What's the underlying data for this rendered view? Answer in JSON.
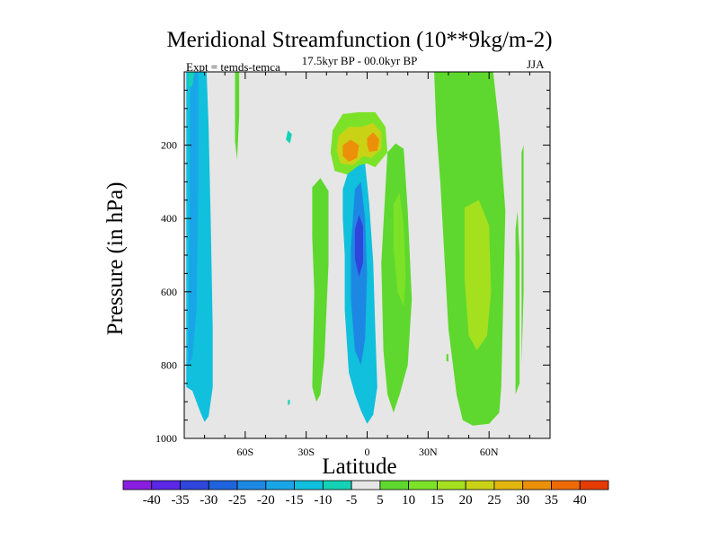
{
  "chart_data": {
    "type": "heatmap",
    "title": "Meridional Streamfunction (10**9kg/m-2)",
    "subtitle": "17.5kyr BP - 00.0kyr BP",
    "left_annotation": "Expt = temds-temca",
    "right_annotation": "JJA",
    "xlabel": "Latitude",
    "ylabel": "Pressure (in hPa)",
    "xlim": [
      -90,
      90
    ],
    "ylim": [
      0,
      1000
    ],
    "y_inverted": true,
    "x_ticks": [
      {
        "value": -60,
        "label": "60S"
      },
      {
        "value": -30,
        "label": "30S"
      },
      {
        "value": 0,
        "label": "0"
      },
      {
        "value": 30,
        "label": "30N"
      },
      {
        "value": 60,
        "label": "60N"
      }
    ],
    "y_ticks": [
      {
        "value": 200,
        "label": "200"
      },
      {
        "value": 400,
        "label": "400"
      },
      {
        "value": 600,
        "label": "600"
      },
      {
        "value": 800,
        "label": "800"
      },
      {
        "value": 1000,
        "label": "1000"
      }
    ],
    "colorbar": {
      "levels": [
        -40,
        -35,
        -30,
        -25,
        -20,
        -15,
        -10,
        -5,
        5,
        10,
        15,
        20,
        25,
        30,
        35,
        40
      ],
      "colors": [
        "#8a1ee0",
        "#5a28e6",
        "#2f46dc",
        "#1f64dc",
        "#1d88e4",
        "#19a6e8",
        "#10c0dc",
        "#14d2b6",
        "#e6e6e6",
        "#5ed82e",
        "#7ce228",
        "#a4e01e",
        "#cad216",
        "#e2b60e",
        "#ec900a",
        "#ee6a06",
        "#e43c02"
      ]
    },
    "regions": [
      {
        "name": "southern-high-lat-cell",
        "value": -12,
        "points": [
          [
            -89,
            0
          ],
          [
            -79,
            0
          ],
          [
            -78,
            150
          ],
          [
            -77,
            400
          ],
          [
            -76,
            700
          ],
          [
            -76,
            860
          ],
          [
            -78,
            940
          ],
          [
            -80,
            955
          ],
          [
            -82,
            930
          ],
          [
            -84,
            900
          ],
          [
            -86,
            870
          ],
          [
            -89,
            860
          ]
        ]
      },
      {
        "name": "southern-core",
        "value": -17,
        "points": [
          [
            -87,
            0
          ],
          [
            -83,
            0
          ],
          [
            -83,
            300
          ],
          [
            -84,
            650
          ],
          [
            -86,
            780
          ],
          [
            -88,
            800
          ]
        ]
      },
      {
        "name": "stratosphere-blob",
        "value": -8,
        "points": [
          [
            -39,
            160
          ],
          [
            -37,
            170
          ],
          [
            -38,
            195
          ],
          [
            -40,
            185
          ]
        ]
      },
      {
        "name": "equatorial-negative-cell",
        "value": -12,
        "points": [
          [
            -8,
            250
          ],
          [
            -4,
            225
          ],
          [
            -1,
            250
          ],
          [
            1,
            360
          ],
          [
            3,
            520
          ],
          [
            4,
            700
          ],
          [
            5,
            860
          ],
          [
            3,
            935
          ],
          [
            0,
            960
          ],
          [
            -3,
            925
          ],
          [
            -6,
            880
          ],
          [
            -9,
            820
          ],
          [
            -11,
            650
          ],
          [
            -11,
            500
          ],
          [
            -12,
            400
          ],
          [
            -12,
            320
          ]
        ]
      },
      {
        "name": "equatorial-negative-core",
        "value": -24,
        "points": [
          [
            -6,
            320
          ],
          [
            -3,
            300
          ],
          [
            -1,
            400
          ],
          [
            0,
            550
          ],
          [
            -1,
            730
          ],
          [
            -3,
            800
          ],
          [
            -6,
            760
          ],
          [
            -8,
            620
          ],
          [
            -8,
            480
          ]
        ]
      },
      {
        "name": "equatorial-negative-peak",
        "value": -31,
        "points": [
          [
            -4,
            390
          ],
          [
            -2,
            420
          ],
          [
            -2,
            520
          ],
          [
            -4,
            560
          ],
          [
            -6,
            510
          ],
          [
            -6,
            430
          ]
        ]
      },
      {
        "name": "upper-positive-cell",
        "value": 12,
        "points": [
          [
            -17,
            160
          ],
          [
            -12,
            115
          ],
          [
            -4,
            110
          ],
          [
            4,
            110
          ],
          [
            9,
            150
          ],
          [
            10,
            220
          ],
          [
            4,
            260
          ],
          [
            0,
            250
          ],
          [
            -4,
            255
          ],
          [
            -10,
            280
          ],
          [
            -16,
            270
          ],
          [
            -18,
            220
          ]
        ]
      },
      {
        "name": "upper-positive-mid",
        "value": 22,
        "points": [
          [
            -14,
            175
          ],
          [
            -9,
            150
          ],
          [
            -3,
            150
          ],
          [
            3,
            140
          ],
          [
            7,
            165
          ],
          [
            7,
            210
          ],
          [
            2,
            235
          ],
          [
            -2,
            230
          ],
          [
            -7,
            255
          ],
          [
            -13,
            250
          ],
          [
            -15,
            215
          ]
        ]
      },
      {
        "name": "upper-positive-core-west",
        "value": 33,
        "points": [
          [
            -12,
            200
          ],
          [
            -8,
            185
          ],
          [
            -4,
            200
          ],
          [
            -5,
            235
          ],
          [
            -9,
            245
          ],
          [
            -12,
            230
          ]
        ]
      },
      {
        "name": "upper-positive-core-east",
        "value": 33,
        "points": [
          [
            0,
            180
          ],
          [
            3,
            165
          ],
          [
            6,
            185
          ],
          [
            5,
            215
          ],
          [
            1,
            218
          ],
          [
            0,
            200
          ]
        ]
      },
      {
        "name": "west-positive-flank",
        "value": 8,
        "points": [
          [
            -27,
            315
          ],
          [
            -23,
            290
          ],
          [
            -19,
            325
          ],
          [
            -19,
            525
          ],
          [
            -21,
            780
          ],
          [
            -23,
            880
          ],
          [
            -25,
            900
          ],
          [
            -27,
            860
          ],
          [
            -26,
            600
          ],
          [
            -27,
            450
          ]
        ]
      },
      {
        "name": "east-positive-flank",
        "value": 8,
        "points": [
          [
            10,
            220
          ],
          [
            14,
            195
          ],
          [
            18,
            210
          ],
          [
            20,
            380
          ],
          [
            22,
            620
          ],
          [
            20,
            800
          ],
          [
            16,
            880
          ],
          [
            13,
            930
          ],
          [
            10,
            880
          ],
          [
            8,
            760
          ],
          [
            7,
            520
          ]
        ]
      },
      {
        "name": "east-positive-core",
        "value": 14,
        "points": [
          [
            13,
            360
          ],
          [
            16,
            330
          ],
          [
            18,
            420
          ],
          [
            19,
            560
          ],
          [
            18,
            640
          ],
          [
            15,
            600
          ],
          [
            13,
            480
          ]
        ]
      },
      {
        "name": "northern-positive-cell",
        "value": 9,
        "points": [
          [
            33,
            0
          ],
          [
            62,
            0
          ],
          [
            65,
            150
          ],
          [
            68,
            380
          ],
          [
            67,
            620
          ],
          [
            66,
            860
          ],
          [
            65,
            930
          ],
          [
            60,
            960
          ],
          [
            52,
            965
          ],
          [
            47,
            950
          ],
          [
            44,
            880
          ],
          [
            40,
            700
          ],
          [
            38,
            500
          ],
          [
            36,
            300
          ],
          [
            34,
            150
          ]
        ]
      },
      {
        "name": "northern-positive-core",
        "value": 18,
        "points": [
          [
            48,
            370
          ],
          [
            55,
            350
          ],
          [
            60,
            420
          ],
          [
            61,
            600
          ],
          [
            59,
            720
          ],
          [
            54,
            760
          ],
          [
            50,
            720
          ],
          [
            48,
            570
          ]
        ]
      },
      {
        "name": "high-north-band",
        "value": 8,
        "points": [
          [
            73,
            430
          ],
          [
            74,
            380
          ],
          [
            75,
            500
          ],
          [
            75,
            720
          ],
          [
            75,
            850
          ],
          [
            73,
            880
          ],
          [
            73,
            700
          ]
        ]
      },
      {
        "name": "far-north-sliver",
        "value": 7,
        "points": [
          [
            76,
            220
          ],
          [
            77,
            200
          ],
          [
            77,
            600
          ],
          [
            76,
            800
          ],
          [
            76,
            500
          ]
        ]
      },
      {
        "name": "polar-tongue",
        "value": 8,
        "points": [
          [
            -65,
            0
          ],
          [
            -63,
            0
          ],
          [
            -63,
            120
          ],
          [
            -64,
            240
          ],
          [
            -65,
            190
          ]
        ]
      },
      {
        "name": "top-left-stub",
        "value": -8,
        "points": [
          [
            -88,
            0
          ],
          [
            -85,
            0
          ],
          [
            -86,
            40
          ],
          [
            -88,
            40
          ]
        ]
      },
      {
        "name": "tiny-lower-negative",
        "value": -9,
        "points": [
          [
            -39,
            895
          ],
          [
            -38,
            895
          ],
          [
            -38,
            905
          ],
          [
            -39,
            910
          ]
        ]
      },
      {
        "name": "surface-right-dot",
        "value": 8,
        "points": [
          [
            39,
            770
          ],
          [
            40,
            770
          ],
          [
            40,
            790
          ],
          [
            39,
            790
          ]
        ]
      }
    ]
  }
}
